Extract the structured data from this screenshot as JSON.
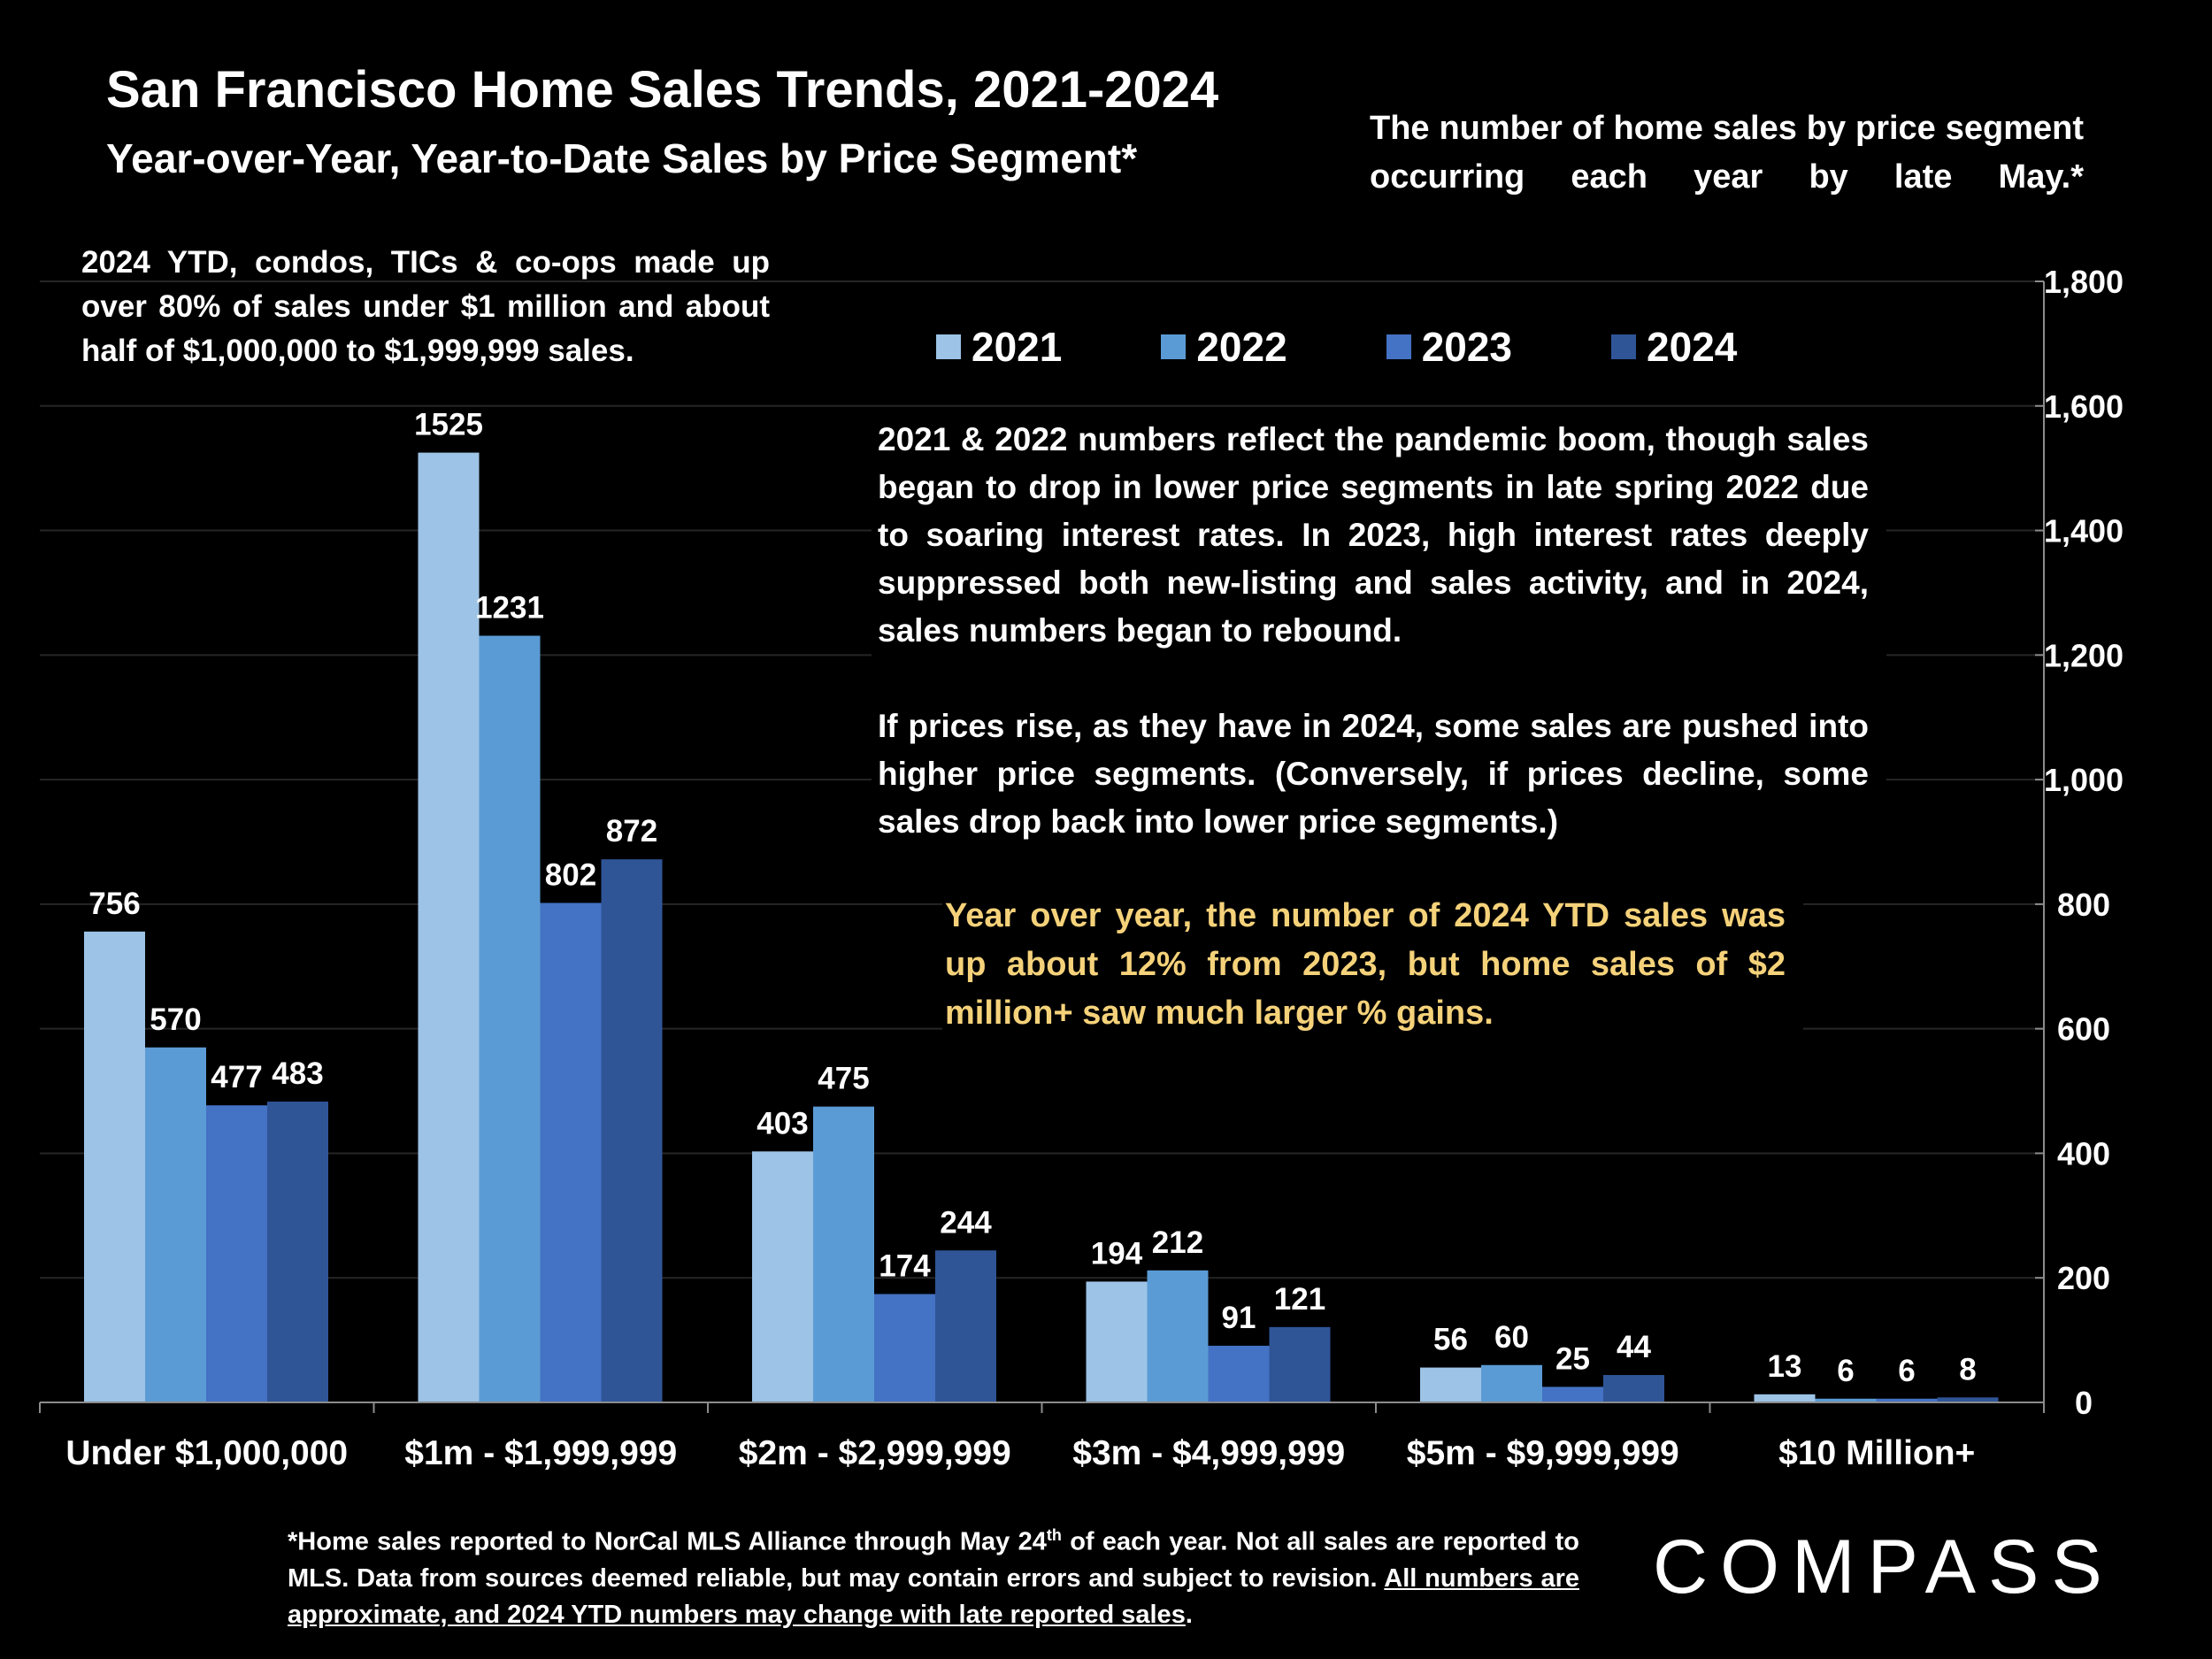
{
  "header": {
    "title": "San Francisco Home Sales Trends, 2021-2024",
    "subtitle": "Year-over-Year, Year-to-Date Sales by Price Segment*",
    "description": "The number of home sales by price segment occurring each year by late May.*"
  },
  "notes": {
    "condo_note": "2024 YTD, condos, TICs & co-ops made up over 80% of sales under $1 million and about half of $1,000,000 to $1,999,999 sales.",
    "pandemic_note": "2021 & 2022 numbers reflect the pandemic boom, though sales began to drop in lower price segments in late spring 2022 due to soaring interest rates. In 2023, high interest rates deeply suppressed both new-listing and sales activity, and in 2024, sales numbers began to rebound.",
    "price_note": "If prices rise, as they have in 2024, some sales are pushed into higher price segments. (Conversely, if prices decline, some sales drop back into lower price segments.)",
    "yoy_note": "Year over year, the number of 2024 YTD sales was up about 12% from 2023, but home sales of $2 million+ saw much larger % gains."
  },
  "footnote": {
    "line_main_a": "*Home sales reported to NorCal MLS Alliance through May 24",
    "superscript": "th",
    "line_main_b": " of each year. Not all sales are reported to MLS. Data from sources deemed reliable, but may contain errors and subject to revision. ",
    "underlined": "All numbers are approximate, and 2024 YTD numbers may change with late reported sales",
    "end": "."
  },
  "brand": {
    "logo_text": "COMPASS"
  },
  "chart_data": {
    "type": "bar",
    "title": "San Francisco Home Sales Trends, 2021-2024",
    "xlabel": "",
    "ylabel": "",
    "ylim": [
      0,
      1800
    ],
    "yticks": [
      0,
      200,
      400,
      600,
      800,
      1000,
      1200,
      1400,
      1600,
      1800
    ],
    "ytick_labels": [
      "0",
      "200",
      "400",
      "600",
      "800",
      "1,000",
      "1,200",
      "1,400",
      "1,600",
      "1,800"
    ],
    "y_axis_side": "right",
    "grid": true,
    "legend_position": "top-center",
    "categories": [
      "Under $1,000,000",
      "$1m - $1,999,999",
      "$2m - $2,999,999",
      "$3m - $4,999,999",
      "$5m - $9,999,999",
      "$10 Million+"
    ],
    "series": [
      {
        "name": "2021",
        "color": "#9dc3e6",
        "values": [
          756,
          1525,
          403,
          194,
          56,
          13
        ]
      },
      {
        "name": "2022",
        "color": "#5b9bd5",
        "values": [
          570,
          1231,
          475,
          212,
          60,
          6
        ]
      },
      {
        "name": "2023",
        "color": "#4472c4",
        "values": [
          477,
          802,
          174,
          91,
          25,
          6
        ]
      },
      {
        "name": "2024",
        "color": "#2f5597",
        "values": [
          483,
          872,
          244,
          121,
          44,
          8
        ]
      }
    ]
  }
}
